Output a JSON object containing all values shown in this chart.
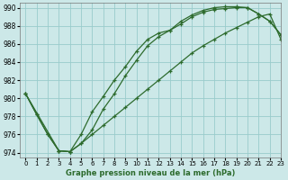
{
  "xlabel": "Graphe pression niveau de la mer (hPa)",
  "ylim": [
    973.5,
    990.5
  ],
  "xlim": [
    -0.5,
    23
  ],
  "yticks": [
    974,
    976,
    978,
    980,
    982,
    984,
    986,
    988,
    990
  ],
  "xticks": [
    0,
    1,
    2,
    3,
    4,
    5,
    6,
    7,
    8,
    9,
    10,
    11,
    12,
    13,
    14,
    15,
    16,
    17,
    18,
    19,
    20,
    21,
    22,
    23
  ],
  "bg_color": "#cce8e8",
  "grid_color": "#99cccc",
  "line_color": "#2d6b2d",
  "series1": {
    "x": [
      0,
      1,
      2,
      3,
      4,
      5,
      6,
      7,
      8,
      9,
      10,
      11,
      12,
      13,
      14,
      15,
      16,
      17,
      18,
      19,
      20,
      21,
      22,
      23
    ],
    "y": [
      980.5,
      978.2,
      976.0,
      974.2,
      974.1,
      976.0,
      978.5,
      980.2,
      982.0,
      983.5,
      985.2,
      986.5,
      987.2,
      987.5,
      988.2,
      989.0,
      989.5,
      989.8,
      989.9,
      990.0,
      990.0,
      989.3,
      988.5,
      987.0
    ]
  },
  "series2": {
    "x": [
      0,
      1,
      2,
      3,
      4,
      5,
      6,
      7,
      8,
      9,
      10,
      11,
      12,
      13,
      14,
      15,
      16,
      17,
      18,
      19,
      20,
      21,
      22,
      23
    ],
    "y": [
      980.5,
      978.2,
      976.0,
      974.2,
      974.1,
      975.0,
      976.5,
      978.8,
      980.5,
      982.5,
      984.2,
      985.8,
      986.8,
      987.5,
      988.5,
      989.2,
      989.7,
      990.0,
      990.1,
      990.1,
      990.0,
      989.3,
      988.5,
      987.0
    ]
  },
  "series3": {
    "x": [
      0,
      3,
      4,
      5,
      6,
      7,
      8,
      9,
      10,
      11,
      12,
      13,
      14,
      15,
      16,
      17,
      18,
      19,
      20,
      21,
      22,
      23
    ],
    "y": [
      980.5,
      974.2,
      974.1,
      975.0,
      976.0,
      977.0,
      978.0,
      979.0,
      980.0,
      981.0,
      982.0,
      983.0,
      984.0,
      985.0,
      985.8,
      986.5,
      987.2,
      987.8,
      988.4,
      989.0,
      989.3,
      986.5
    ]
  }
}
